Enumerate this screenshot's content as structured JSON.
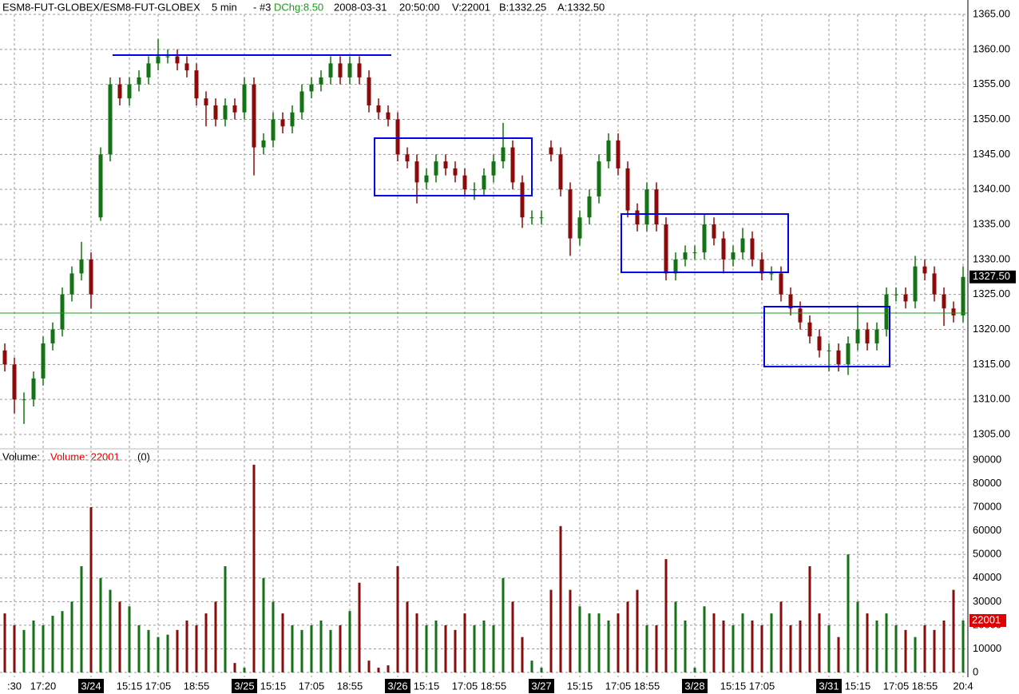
{
  "chart_data": [
    {
      "type": "ohlc",
      "symbol": "ESM8-FUT-GLOBEX/ESM8-FUT-GLOBEX",
      "interval": "5 min",
      "series_id": "- #3",
      "dchg": "DChg:8.50",
      "date": "2008-03-31",
      "time": "20:50:00",
      "volume_text": "V:22001",
      "bid": "B:1332.25",
      "ask": "A:1332.50",
      "up_color": "#137213",
      "down_color": "#8b0b0b",
      "open": [
        1317,
        1315,
        1310,
        1310,
        1313,
        1318,
        1320,
        1325,
        1328,
        1330,
        1336,
        1345,
        1355,
        1353,
        1355,
        1356,
        1358,
        1359,
        1359,
        1358,
        1357,
        1353,
        1352,
        1350,
        1352,
        1351,
        1355,
        1346,
        1347,
        1350,
        1349,
        1351,
        1354,
        1355,
        1356,
        1358,
        1356,
        1358,
        1356,
        1352,
        1351,
        1350,
        1345,
        1344,
        1341,
        1342,
        1344,
        1343,
        1342,
        1340,
        1340,
        1342,
        1344,
        1346,
        1341,
        1336,
        1336,
        1346,
        1345,
        1340,
        1333,
        1336,
        1339,
        1344,
        1347,
        1343,
        1337,
        1335,
        1340,
        1335,
        1328,
        1330,
        1331,
        1331,
        1335,
        1333,
        1330,
        1331,
        1333,
        1330,
        1328,
        1328,
        1325,
        1323,
        1321,
        1319,
        1317,
        1317,
        1315,
        1318,
        1320,
        1318,
        1320,
        1325,
        1325,
        1324,
        1329,
        1328,
        1325,
        1323,
        1322
      ],
      "high": [
        1318,
        1316,
        1311,
        1314,
        1319,
        1321,
        1326,
        1329,
        1332.5,
        1331,
        1346,
        1356,
        1356,
        1356,
        1357,
        1359,
        1361.5,
        1360,
        1360,
        1359,
        1358,
        1354,
        1353,
        1353,
        1353,
        1356,
        1356,
        1348,
        1351,
        1351,
        1352,
        1355,
        1356,
        1357,
        1359,
        1359,
        1359,
        1359,
        1357,
        1353,
        1352,
        1351,
        1346,
        1345,
        1343,
        1345,
        1345,
        1344,
        1343,
        1341,
        1343,
        1345,
        1349.5,
        1347,
        1342,
        1337,
        1337,
        1347,
        1346,
        1341,
        1337,
        1340,
        1345,
        1348,
        1348,
        1344,
        1338,
        1341,
        1341,
        1336,
        1331,
        1332,
        1332,
        1336.5,
        1336,
        1334,
        1332,
        1334.5,
        1334,
        1331,
        1329,
        1329,
        1326,
        1324,
        1322,
        1320,
        1318,
        1318,
        1319,
        1323.5,
        1321,
        1321,
        1326,
        1326,
        1326,
        1330.5,
        1330,
        1329,
        1326,
        1324,
        1329
      ],
      "low": [
        1314,
        1308,
        1306.5,
        1309,
        1312,
        1317,
        1319,
        1324,
        1327,
        1323,
        1335.5,
        1344,
        1352,
        1352,
        1354,
        1355,
        1357,
        1358,
        1357,
        1356,
        1352,
        1349,
        1349,
        1349,
        1350,
        1350,
        1342,
        1345,
        1346,
        1348,
        1348,
        1350,
        1353,
        1354,
        1355,
        1355,
        1355,
        1355,
        1351,
        1350,
        1349,
        1344,
        1343,
        1338,
        1340,
        1341,
        1342,
        1341,
        1339,
        1338.5,
        1339,
        1341,
        1343,
        1340,
        1334.5,
        1335,
        1335,
        1344,
        1339,
        1330.5,
        1332,
        1335,
        1338,
        1343,
        1342,
        1336,
        1334,
        1334,
        1334,
        1327,
        1327,
        1329,
        1330,
        1330,
        1332,
        1328,
        1329,
        1330,
        1329,
        1327,
        1327,
        1324,
        1322,
        1320,
        1318,
        1316,
        1314,
        1314,
        1313.5,
        1317,
        1317,
        1317,
        1319,
        1324,
        1323,
        1323,
        1327,
        1324,
        1320.5,
        1321,
        1321
      ],
      "close": [
        1315,
        1310,
        1310,
        1313,
        1318,
        1320,
        1325,
        1328,
        1330,
        1325,
        1345,
        1355,
        1353,
        1355,
        1356,
        1358,
        1359,
        1359,
        1358,
        1357,
        1353,
        1352,
        1350,
        1352,
        1351,
        1355,
        1346,
        1347,
        1350,
        1349,
        1351,
        1354,
        1355,
        1356,
        1358,
        1356,
        1358,
        1356,
        1352,
        1351,
        1350,
        1345,
        1344,
        1341,
        1342,
        1344,
        1343,
        1342,
        1340,
        1340,
        1342,
        1344,
        1346,
        1341,
        1336,
        1336,
        1336,
        1345,
        1340,
        1333,
        1336,
        1339,
        1344,
        1347,
        1343,
        1337,
        1335,
        1340,
        1335,
        1328,
        1330,
        1331,
        1331,
        1335,
        1333,
        1330,
        1331,
        1333,
        1330,
        1328,
        1328,
        1325,
        1323,
        1321,
        1319,
        1317,
        1317,
        1315,
        1318,
        1320,
        1318,
        1320,
        1325,
        1325,
        1324,
        1329,
        1328,
        1325,
        1323,
        1322,
        1327.5
      ],
      "last_label": {
        "value": 1327.5,
        "label": "1327.50"
      },
      "ylim": [
        1305,
        1365
      ],
      "yticks": [
        {
          "value": 1305,
          "label": "1305.00"
        },
        {
          "value": 1310,
          "label": "1310.00"
        },
        {
          "value": 1315,
          "label": "1315.00"
        },
        {
          "value": 1320,
          "label": "1320.00"
        },
        {
          "value": 1325,
          "label": "1325.00"
        },
        {
          "value": 1330,
          "label": "1330.00"
        },
        {
          "value": 1335,
          "label": "1335.00"
        },
        {
          "value": 1340,
          "label": "1340.00"
        },
        {
          "value": 1345,
          "label": "1345.00"
        },
        {
          "value": 1350,
          "label": "1350.00"
        },
        {
          "value": 1355,
          "label": "1355.00"
        },
        {
          "value": 1360,
          "label": "1360.00"
        },
        {
          "value": 1365,
          "label": "1365.00"
        }
      ],
      "grid": true
    },
    {
      "type": "bar",
      "title": "Volume:",
      "legend": "Volume: 22001",
      "note": "(0)",
      "legend_color": "#e00000",
      "categories": [
        null,
        ":30",
        null,
        null,
        "17:20",
        null,
        null,
        null,
        null,
        "3/24",
        null,
        null,
        null,
        "15:15",
        null,
        null,
        "17:05",
        null,
        null,
        null,
        "18:55",
        null,
        null,
        null,
        null,
        "3/25",
        null,
        null,
        "15:15",
        null,
        null,
        null,
        "17:05",
        null,
        null,
        null,
        "18:55",
        null,
        null,
        null,
        null,
        "3/26",
        null,
        null,
        "15:15",
        null,
        null,
        null,
        "17:05",
        null,
        null,
        "18:55",
        null,
        null,
        null,
        null,
        "3/27",
        null,
        null,
        null,
        "15:15",
        null,
        null,
        null,
        "17:05",
        null,
        null,
        "18:55",
        null,
        null,
        null,
        null,
        "3/28",
        null,
        null,
        null,
        "15:15",
        null,
        null,
        "17:05",
        null,
        null,
        null,
        null,
        null,
        null,
        "3/31",
        null,
        null,
        "15:15",
        null,
        null,
        null,
        "17:05",
        null,
        null,
        "18:55",
        null,
        null,
        null,
        "20:4"
      ],
      "values": [
        25000,
        20000,
        18000,
        22000,
        20000,
        24000,
        26000,
        30000,
        45000,
        70000,
        40000,
        35000,
        30000,
        28000,
        20000,
        18000,
        15000,
        16000,
        18000,
        22000,
        20000,
        25000,
        30000,
        45000,
        4000,
        2000,
        88000,
        40000,
        30000,
        25000,
        20000,
        18000,
        20000,
        22000,
        18000,
        20000,
        26000,
        38000,
        5000,
        2000,
        3000,
        45000,
        30000,
        25000,
        20000,
        22000,
        20000,
        18000,
        25000,
        20000,
        22000,
        20000,
        40000,
        30000,
        15000,
        5000,
        2000,
        35000,
        62000,
        35000,
        28000,
        25000,
        25000,
        22000,
        25000,
        30000,
        35000,
        20000,
        20000,
        48000,
        30000,
        22000,
        2000,
        28000,
        25000,
        22000,
        20000,
        25000,
        22000,
        20000,
        25000,
        30000,
        20000,
        22000,
        45000,
        25000,
        20000,
        15000,
        50000,
        30000,
        25000,
        22000,
        25000,
        20000,
        18000,
        15000,
        20000,
        18000,
        22000,
        35000,
        22001
      ],
      "last_label": 22001,
      "ylim": [
        0,
        90000
      ],
      "yticks": [
        0,
        10000,
        20000,
        30000,
        40000,
        50000,
        60000,
        70000,
        80000,
        90000
      ],
      "grid": true
    }
  ]
}
